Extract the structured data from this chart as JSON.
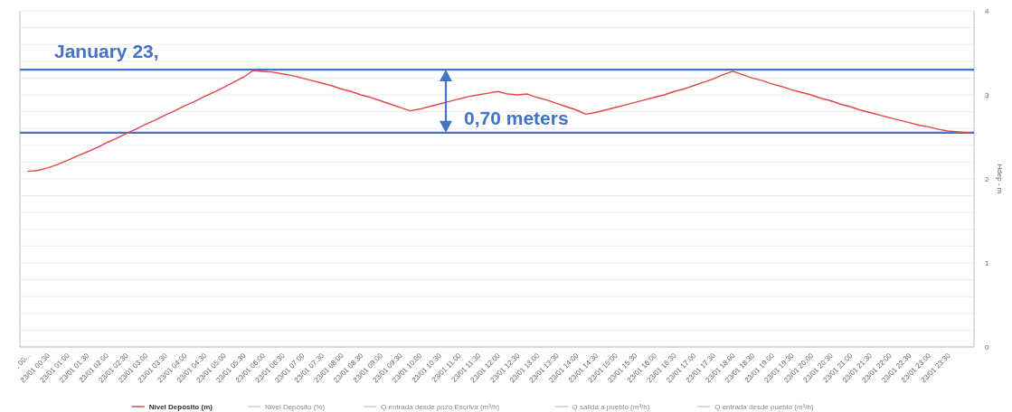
{
  "chart_data": {
    "type": "line",
    "title": "January 23,",
    "ylabel": "Hdep - m",
    "categories": [
      ", 00...",
      null,
      "23/01 00:30",
      null,
      "23/01 01:00",
      null,
      "23/01 01:30",
      null,
      "23/01 02:00",
      null,
      "23/01 02:30",
      null,
      "23/01 03:00",
      null,
      "23/01 03:30",
      null,
      "23/01 04:00",
      null,
      "23/01 04:30",
      null,
      "23/01 05:00",
      null,
      "23/01 05:30",
      null,
      "23/01 06:00",
      null,
      "23/01 06:30",
      null,
      "23/01 07:00",
      null,
      "23/01 07:30",
      null,
      "23/01 08:00",
      null,
      "23/01 08:30",
      null,
      "23/01 09:00",
      null,
      "23/01 09:30",
      null,
      "23/01 10:00",
      null,
      "23/01 10:30",
      null,
      "23/01 11:00",
      null,
      "23/01 11:30",
      null,
      "23/01 12:00",
      null,
      "23/01 12:30",
      null,
      "23/01 13:00",
      null,
      "23/01 13:30",
      null,
      "23/01 14:00",
      null,
      "23/01 14:30",
      null,
      "23/01 15:00",
      null,
      "23/01 15:30",
      null,
      "23/01 16:00",
      null,
      "23/01 16:30",
      null,
      "23/01 17:00",
      null,
      "23/01 17:30",
      null,
      "23/01 18:00",
      null,
      "23/01 18:30",
      null,
      "23/01 19:00",
      null,
      "23/01 19:30",
      null,
      "23/01 20:00",
      null,
      "23/01 20:30",
      null,
      "23/01 21:00",
      null,
      "23/01 21:30",
      null,
      "23/01 22:00",
      null,
      "23/01 22:30",
      null,
      "23/01 23:00",
      null,
      "23/01 23:30",
      null,
      null
    ],
    "series": [
      {
        "name": "Nivel Depósito (m)",
        "color": "#e0474c",
        "values": [
          2.09,
          2.1,
          2.13,
          2.17,
          2.22,
          2.27,
          2.32,
          2.37,
          2.43,
          2.48,
          2.54,
          2.59,
          2.65,
          2.7,
          2.76,
          2.81,
          2.87,
          2.92,
          2.98,
          3.03,
          3.09,
          3.15,
          3.21,
          3.29,
          3.28,
          3.27,
          3.25,
          3.23,
          3.2,
          3.17,
          3.14,
          3.11,
          3.07,
          3.04,
          3.0,
          2.97,
          2.93,
          2.89,
          2.85,
          2.81,
          2.83,
          2.86,
          2.89,
          2.92,
          2.95,
          2.98,
          3.0,
          3.02,
          3.04,
          3.01,
          3.0,
          3.01,
          2.97,
          2.94,
          2.9,
          2.86,
          2.82,
          2.77,
          2.79,
          2.82,
          2.85,
          2.88,
          2.91,
          2.94,
          2.97,
          3.0,
          3.04,
          3.07,
          3.11,
          3.15,
          3.19,
          3.24,
          3.28,
          3.24,
          3.2,
          3.17,
          3.13,
          3.1,
          3.06,
          3.03,
          3.0,
          2.96,
          2.93,
          2.89,
          2.86,
          2.82,
          2.79,
          2.76,
          2.73,
          2.7,
          2.67,
          2.64,
          2.62,
          2.59,
          2.57,
          2.56,
          2.55
        ]
      },
      {
        "name": "Nivel Depósito (%)",
        "color": "#cccccc",
        "values": [
          null,
          null,
          null,
          null,
          null,
          null,
          null,
          null,
          null,
          null,
          null,
          null,
          null,
          null,
          null,
          null,
          null,
          null,
          null,
          null,
          null,
          null,
          null,
          null,
          null,
          null,
          null,
          null,
          null,
          null,
          null,
          null,
          null,
          null,
          null,
          null,
          null,
          null,
          null,
          null,
          null,
          null,
          null,
          null,
          null,
          null,
          null,
          null,
          null,
          null,
          null,
          null,
          null,
          null,
          null,
          null,
          null,
          null,
          null,
          null,
          null,
          null,
          null,
          null,
          null,
          null,
          null,
          null,
          null,
          null,
          null,
          null,
          null,
          null,
          null,
          null,
          null,
          null,
          null,
          null,
          null,
          null,
          null,
          null,
          null,
          null,
          null,
          null,
          null,
          null,
          null,
          null,
          null,
          null,
          null,
          null,
          null
        ]
      },
      {
        "name": "Q entrada desde pozo Escriva (m³/h)",
        "color": "#cccccc",
        "values": [
          null,
          null,
          null,
          null,
          null,
          null,
          null,
          null,
          null,
          null,
          null,
          null,
          null,
          null,
          null,
          null,
          null,
          null,
          null,
          null,
          null,
          null,
          null,
          null,
          null,
          null,
          null,
          null,
          null,
          null,
          null,
          null,
          null,
          null,
          null,
          null,
          null,
          null,
          null,
          null,
          null,
          null,
          null,
          null,
          null,
          null,
          null,
          null,
          null,
          null,
          null,
          null,
          null,
          null,
          null,
          null,
          null,
          null,
          null,
          null,
          null,
          null,
          null,
          null,
          null,
          null,
          null,
          null,
          null,
          null,
          null,
          null,
          null,
          null,
          null,
          null,
          null,
          null,
          null,
          null,
          null,
          null,
          null,
          null,
          null,
          null,
          null,
          null,
          null,
          null,
          null,
          null,
          null,
          null,
          null,
          null,
          null
        ]
      },
      {
        "name": "Q salida a pueblo (m³/h)",
        "color": "#cccccc",
        "values": [
          null,
          null,
          null,
          null,
          null,
          null,
          null,
          null,
          null,
          null,
          null,
          null,
          null,
          null,
          null,
          null,
          null,
          null,
          null,
          null,
          null,
          null,
          null,
          null,
          null,
          null,
          null,
          null,
          null,
          null,
          null,
          null,
          null,
          null,
          null,
          null,
          null,
          null,
          null,
          null,
          null,
          null,
          null,
          null,
          null,
          null,
          null,
          null,
          null,
          null,
          null,
          null,
          null,
          null,
          null,
          null,
          null,
          null,
          null,
          null,
          null,
          null,
          null,
          null,
          null,
          null,
          null,
          null,
          null,
          null,
          null,
          null,
          null,
          null,
          null,
          null,
          null,
          null,
          null,
          null,
          null,
          null,
          null,
          null,
          null,
          null,
          null,
          null,
          null,
          null,
          null,
          null,
          null,
          null,
          null,
          null,
          null
        ]
      },
      {
        "name": "Q entrada desde pueblo (m³/h)",
        "color": "#cccccc",
        "values": [
          null,
          null,
          null,
          null,
          null,
          null,
          null,
          null,
          null,
          null,
          null,
          null,
          null,
          null,
          null,
          null,
          null,
          null,
          null,
          null,
          null,
          null,
          null,
          null,
          null,
          null,
          null,
          null,
          null,
          null,
          null,
          null,
          null,
          null,
          null,
          null,
          null,
          null,
          null,
          null,
          null,
          null,
          null,
          null,
          null,
          null,
          null,
          null,
          null,
          null,
          null,
          null,
          null,
          null,
          null,
          null,
          null,
          null,
          null,
          null,
          null,
          null,
          null,
          null,
          null,
          null,
          null,
          null,
          null,
          null,
          null,
          null,
          null,
          null,
          null,
          null,
          null,
          null,
          null,
          null,
          null,
          null,
          null,
          null,
          null,
          null,
          null,
          null,
          null,
          null,
          null,
          null,
          null,
          null,
          null,
          null,
          null
        ]
      }
    ],
    "ylim": [
      0,
      4
    ],
    "yticks": [
      0,
      {
        "value": 0.2,
        "label": null
      },
      {
        "value": 0.4,
        "label": null
      },
      {
        "value": 0.6,
        "label": null
      },
      {
        "value": 0.8,
        "label": null
      },
      1,
      {
        "value": 1.2,
        "label": null
      },
      {
        "value": 1.4,
        "label": null
      },
      {
        "value": 1.6,
        "label": null
      },
      {
        "value": 1.8,
        "label": null
      },
      2,
      {
        "value": 2.2,
        "label": null
      },
      {
        "value": 2.4,
        "label": null
      },
      {
        "value": 2.6,
        "label": null
      },
      {
        "value": 2.8,
        "label": null
      },
      3,
      {
        "value": 3.2,
        "label": null
      },
      {
        "value": 3.4,
        "label": null
      },
      {
        "value": 3.6,
        "label": null
      },
      {
        "value": 3.8,
        "label": null
      },
      4
    ],
    "ref_lines": [
      {
        "axis": "y",
        "value": 3.3,
        "color": "#4472c4"
      },
      {
        "axis": "y",
        "value": 2.55,
        "color": "#4472c4"
      }
    ],
    "annotations": [
      "0,70 meters"
    ],
    "grid": "y",
    "legend": "bottom",
    "line_style": "solid"
  }
}
